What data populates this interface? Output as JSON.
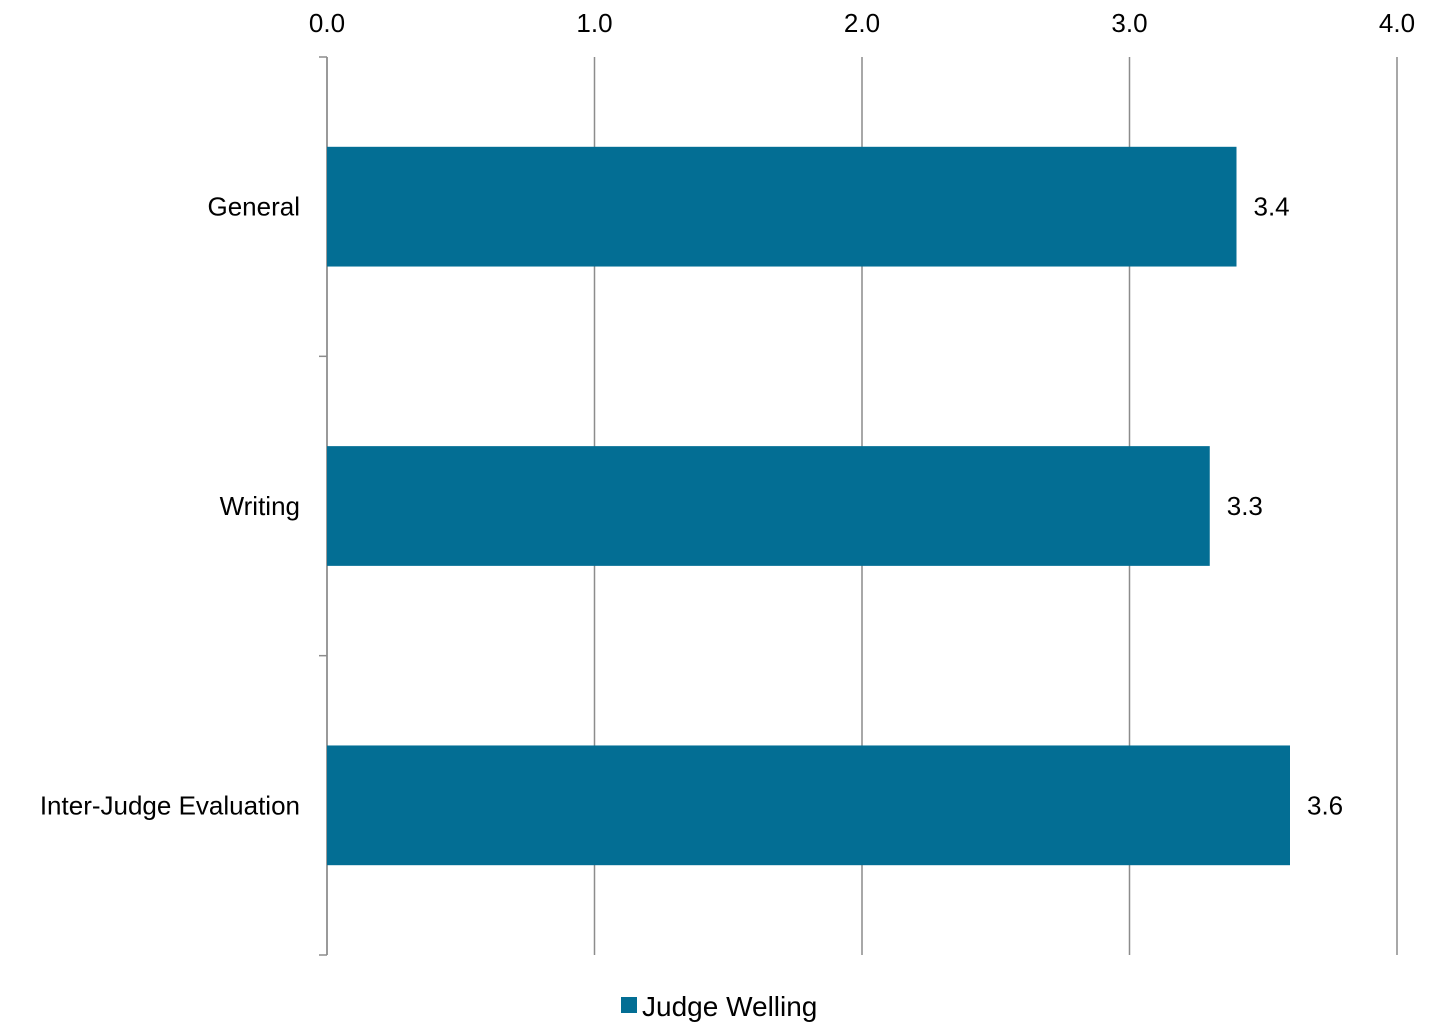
{
  "chart_data": {
    "type": "bar",
    "orientation": "horizontal",
    "categories": [
      "General",
      "Writing",
      "Inter-Judge Evaluation"
    ],
    "series": [
      {
        "name": "Judge Welling",
        "values": [
          3.4,
          3.3,
          3.6
        ],
        "color": "#036E94"
      }
    ],
    "data_labels": [
      "3.4",
      "3.3",
      "3.6"
    ],
    "x_axis": {
      "range": [
        0,
        4
      ],
      "ticks": [
        "0.0",
        "1.0",
        "2.0",
        "3.0",
        "4.0"
      ],
      "position": "top"
    },
    "grid": true,
    "legend_position": "bottom",
    "title": "",
    "xlabel": "",
    "ylabel": ""
  },
  "colors": {
    "bar": "#036E94",
    "grid": "#8C8C8C",
    "axis": "#8C8C8C",
    "text": "#000000"
  }
}
